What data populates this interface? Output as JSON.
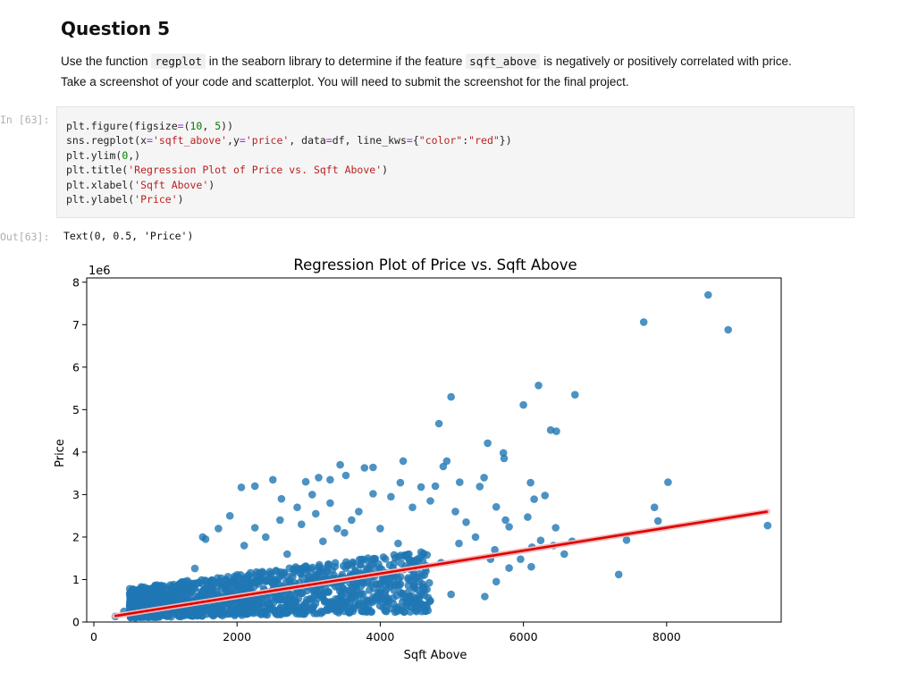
{
  "question": {
    "title": "Question 5",
    "line1_a": "Use the function ",
    "line1_code1": "regplot",
    "line1_b": " in the seaborn library to determine if the feature ",
    "line1_code2": "sqft_above",
    "line1_c": " is negatively or positively correlated with price.",
    "line2": "Take a screenshot of your code and scatterplot. You will need to submit the screenshot for the final project."
  },
  "cell": {
    "in_prompt": "In [63]:",
    "out_prompt": "Out[63]:",
    "code_lines": [
      "plt.figure(figsize=(10, 5))",
      "sns.regplot(x='sqft_above',y='price', data=df, line_kws={\"color\":\"red\"})",
      "plt.ylim(0,)",
      "plt.title('Regression Plot of Price vs. Sqft Above')",
      "plt.xlabel('Sqft Above')",
      "plt.ylabel('Price')"
    ],
    "output_text": "Text(0, 0.5, 'Price')"
  },
  "chart_data": {
    "type": "scatter",
    "title": "Regression Plot of Price vs. Sqft Above",
    "xlabel": "Sqft Above",
    "ylabel": "Price",
    "y_offset_label": "1e6",
    "xlim": [
      -100,
      9600
    ],
    "ylim": [
      0,
      8.1
    ],
    "x_ticks": [
      0,
      2000,
      4000,
      6000,
      8000
    ],
    "y_ticks": [
      0,
      1,
      2,
      3,
      4,
      5,
      6,
      7,
      8
    ],
    "grid": false,
    "point_color": "#1f77b4",
    "line_color": "#e00000",
    "regression_line": {
      "x": [
        290,
        9410
      ],
      "y": [
        0.14,
        2.6
      ]
    },
    "points": [
      [
        8580,
        7.7
      ],
      [
        7680,
        7.06
      ],
      [
        8860,
        6.88
      ],
      [
        6210,
        5.57
      ],
      [
        6720,
        5.35
      ],
      [
        4990,
        5.3
      ],
      [
        6000,
        5.11
      ],
      [
        4820,
        4.67
      ],
      [
        6380,
        4.52
      ],
      [
        6460,
        4.49
      ],
      [
        5500,
        4.21
      ],
      [
        5720,
        3.98
      ],
      [
        5730,
        3.85
      ],
      [
        3440,
        3.7
      ],
      [
        4320,
        3.79
      ],
      [
        3900,
        3.64
      ],
      [
        3780,
        3.63
      ],
      [
        4930,
        3.79
      ],
      [
        4880,
        3.66
      ],
      [
        8020,
        3.29
      ],
      [
        6100,
        3.28
      ],
      [
        3140,
        3.4
      ],
      [
        2960,
        3.3
      ],
      [
        3520,
        3.45
      ],
      [
        4280,
        3.28
      ],
      [
        4570,
        3.18
      ],
      [
        5110,
        3.29
      ],
      [
        5450,
        3.4
      ],
      [
        5390,
        3.19
      ],
      [
        6300,
        2.98
      ],
      [
        6150,
        2.89
      ],
      [
        4770,
        3.2
      ],
      [
        5620,
        2.71
      ],
      [
        7830,
        2.7
      ],
      [
        7880,
        2.38
      ],
      [
        6450,
        2.22
      ],
      [
        6060,
        2.47
      ],
      [
        5800,
        2.24
      ],
      [
        9410,
        2.27
      ],
      [
        7440,
        1.93
      ],
      [
        6680,
        1.9
      ],
      [
        6240,
        1.92
      ],
      [
        5960,
        1.48
      ],
      [
        6120,
        1.76
      ],
      [
        6420,
        1.8
      ],
      [
        6570,
        1.6
      ],
      [
        5800,
        1.27
      ],
      [
        6110,
        1.3
      ],
      [
        5620,
        0.95
      ],
      [
        5460,
        0.6
      ],
      [
        4990,
        0.65
      ],
      [
        5540,
        1.48
      ],
      [
        7330,
        1.12
      ],
      [
        2060,
        3.17
      ],
      [
        1560,
        1.95
      ],
      [
        1520,
        2.0
      ],
      [
        2250,
        3.2
      ],
      [
        2500,
        3.35
      ],
      [
        3300,
        3.35
      ],
      [
        3050,
        3.0
      ],
      [
        2250,
        2.22
      ],
      [
        1740,
        2.2
      ],
      [
        2620,
        2.9
      ],
      [
        2840,
        2.7
      ],
      [
        1410,
        1.26
      ],
      [
        800,
        0.78
      ],
      [
        580,
        0.52
      ],
      [
        300,
        0.13
      ],
      [
        420,
        0.25
      ],
      [
        1200,
        0.5
      ],
      [
        4100,
        1.05
      ],
      [
        4400,
        1.6
      ],
      [
        4700,
        0.5
      ],
      [
        3600,
        2.4
      ],
      [
        3900,
        3.02
      ],
      [
        4150,
        2.95
      ],
      [
        4450,
        2.7
      ],
      [
        4700,
        2.85
      ],
      [
        5050,
        2.6
      ],
      [
        5200,
        2.35
      ],
      [
        5330,
        2.0
      ],
      [
        5600,
        1.7
      ],
      [
        5750,
        2.4
      ],
      [
        2700,
        1.6
      ],
      [
        3200,
        1.9
      ],
      [
        3500,
        2.1
      ],
      [
        2900,
        2.3
      ],
      [
        3700,
        2.6
      ],
      [
        4000,
        2.2
      ],
      [
        4250,
        1.85
      ],
      [
        4600,
        1.6
      ],
      [
        4850,
        1.4
      ],
      [
        5100,
        1.85
      ],
      [
        1900,
        2.5
      ],
      [
        2100,
        1.8
      ],
      [
        2400,
        2.0
      ],
      [
        2600,
        2.4
      ],
      [
        3300,
        2.8
      ],
      [
        3400,
        2.2
      ],
      [
        3100,
        2.55
      ]
    ],
    "dense_band": {
      "x": [
        500,
        4700
      ],
      "y_low": [
        0.1,
        0.25
      ],
      "y_high": [
        0.8,
        1.7
      ]
    }
  }
}
